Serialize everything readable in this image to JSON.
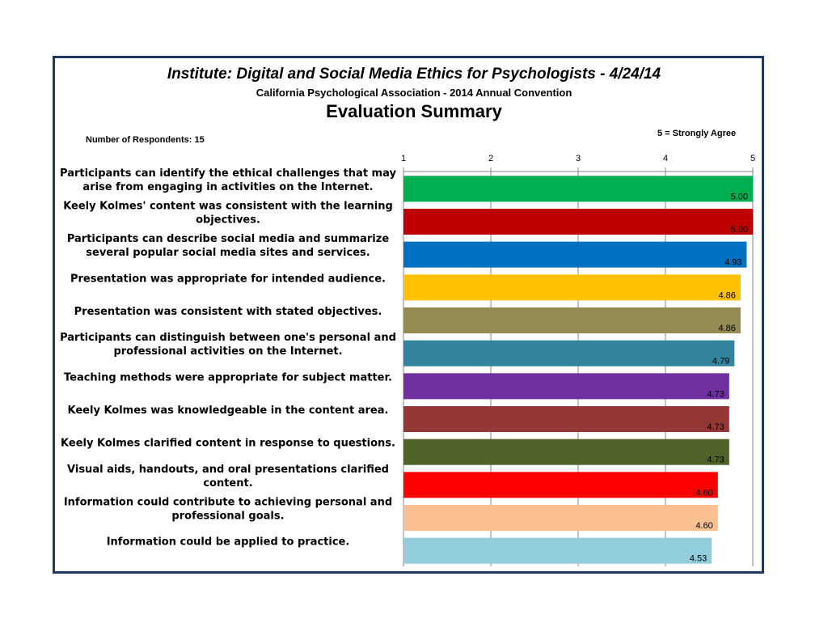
{
  "header": {
    "title": "Institute: Digital and Social Media Ethics for Psychologists - 4/24/14",
    "subtitle": "California Psychological Association - 2014 Annual Convention",
    "heading": "Evaluation Summary",
    "respondents": "Number of Respondents: 15",
    "scale_note": "5 = Strongly Agree"
  },
  "chart_data": {
    "type": "bar",
    "orientation": "horizontal",
    "xlim": [
      1,
      5
    ],
    "ticks": [
      1,
      2,
      3,
      4,
      5
    ],
    "grid": true,
    "items": [
      {
        "label": [
          "Participants can identify the ethical challenges that may",
          "arise from engaging in activities on the Internet."
        ],
        "value": 5.0,
        "value_label": "5.00",
        "color": "#00b050"
      },
      {
        "label": [
          "Keely Kolmes' content was consistent with the learning",
          "objectives."
        ],
        "value": 5.0,
        "value_label": "5.00",
        "color": "#c00000"
      },
      {
        "label": [
          "Participants can describe social media and summarize",
          "several popular social media sites and services."
        ],
        "value": 4.93,
        "value_label": "4.93",
        "color": "#0070c0"
      },
      {
        "label": [
          "Presentation was appropriate for intended audience."
        ],
        "value": 4.86,
        "value_label": "4.86",
        "color": "#ffc000"
      },
      {
        "label": [
          "Presentation was consistent with stated objectives."
        ],
        "value": 4.86,
        "value_label": "4.86",
        "color": "#948a54"
      },
      {
        "label": [
          "Participants can distinguish between one's personal and",
          "professional activities on the Internet."
        ],
        "value": 4.79,
        "value_label": "4.79",
        "color": "#31849b"
      },
      {
        "label": [
          "Teaching methods were appropriate for subject matter."
        ],
        "value": 4.73,
        "value_label": "4.73",
        "color": "#7030a0"
      },
      {
        "label": [
          "Keely Kolmes was knowledgeable in the content area."
        ],
        "value": 4.73,
        "value_label": "4.73",
        "color": "#953735"
      },
      {
        "label": [
          "Keely Kolmes clarified content in response to questions."
        ],
        "value": 4.73,
        "value_label": "4.73",
        "color": "#4f6228"
      },
      {
        "label": [
          "Visual aids, handouts, and oral presentations clarified",
          "content."
        ],
        "value": 4.6,
        "value_label": "4.60",
        "color": "#ff0000"
      },
      {
        "label": [
          "Information could contribute to achieving personal and",
          "professional goals."
        ],
        "value": 4.6,
        "value_label": "4.60",
        "color": "#fac090"
      },
      {
        "label": [
          "Information could be applied to practice."
        ],
        "value": 4.53,
        "value_label": "4.53",
        "color": "#92cddc"
      }
    ]
  }
}
